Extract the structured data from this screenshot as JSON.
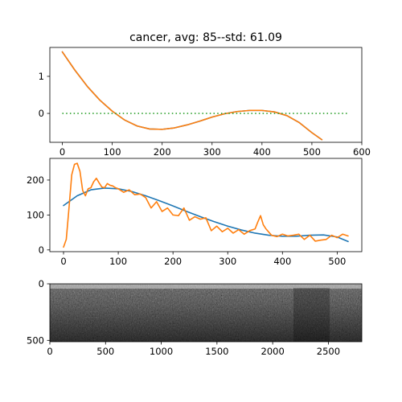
{
  "title": "cancer, avg: 85--std: 61.09",
  "colors": {
    "blue": "#1f77b4",
    "orange": "#ff7f0e",
    "green": "#2ca02c",
    "axis": "#000000"
  },
  "chart_data": [
    {
      "type": "line",
      "title": "cancer, avg: 85--std: 61.09",
      "xlim": [
        -25,
        600
      ],
      "ylim": [
        -0.78,
        1.78
      ],
      "xticks": [
        "0",
        "100",
        "200",
        "300",
        "400",
        "500",
        "600"
      ],
      "yticks": [
        "0",
        "1"
      ],
      "series": [
        {
          "color": "#1f77b4",
          "style": "solid",
          "x": [
            0,
            25,
            50,
            75,
            100,
            125,
            150,
            175,
            200,
            225,
            250,
            275,
            300,
            325,
            350,
            375,
            400,
            425,
            450,
            475,
            500,
            520
          ],
          "y": [
            1.66,
            1.17,
            0.73,
            0.36,
            0.06,
            -0.18,
            -0.34,
            -0.42,
            -0.43,
            -0.39,
            -0.31,
            -0.21,
            -0.1,
            -0.01,
            0.05,
            0.08,
            0.08,
            0.04,
            -0.06,
            -0.25,
            -0.52,
            -0.71
          ]
        },
        {
          "color": "#ff7f0e",
          "style": "solid",
          "x": [
            0,
            25,
            50,
            75,
            100,
            125,
            150,
            175,
            200,
            225,
            250,
            275,
            300,
            325,
            350,
            375,
            400,
            425,
            450,
            475,
            500,
            520
          ],
          "y": [
            1.66,
            1.17,
            0.73,
            0.36,
            0.06,
            -0.18,
            -0.34,
            -0.42,
            -0.43,
            -0.39,
            -0.31,
            -0.21,
            -0.1,
            -0.01,
            0.05,
            0.08,
            0.08,
            0.04,
            -0.06,
            -0.25,
            -0.52,
            -0.71
          ]
        },
        {
          "color": "#2ca02c",
          "style": "dotted",
          "x": [
            0,
            575
          ],
          "y": [
            0,
            0
          ]
        }
      ]
    },
    {
      "type": "line",
      "xlim": [
        -25,
        545
      ],
      "ylim": [
        -5,
        262
      ],
      "xticks": [
        "0",
        "100",
        "200",
        "300",
        "400",
        "500"
      ],
      "yticks": [
        "0",
        "100",
        "200"
      ],
      "series": [
        {
          "color": "#1f77b4",
          "style": "solid",
          "x": [
            0,
            25,
            50,
            75,
            100,
            125,
            150,
            175,
            200,
            225,
            250,
            275,
            300,
            325,
            350,
            375,
            400,
            425,
            450,
            475,
            500,
            520
          ],
          "y": [
            127,
            155,
            172,
            177,
            175,
            167,
            155,
            141,
            126,
            110,
            95,
            81,
            68,
            57,
            48,
            42,
            39,
            39,
            42,
            43,
            37,
            24
          ]
        },
        {
          "color": "#ff7f0e",
          "style": "solid",
          "x": [
            0,
            5,
            10,
            15,
            20,
            25,
            30,
            35,
            40,
            45,
            50,
            55,
            60,
            65,
            70,
            75,
            80,
            85,
            90,
            95,
            100,
            110,
            120,
            130,
            140,
            150,
            160,
            170,
            180,
            190,
            200,
            210,
            220,
            230,
            240,
            250,
            260,
            270,
            280,
            290,
            300,
            310,
            320,
            330,
            340,
            350,
            355,
            360,
            365,
            370,
            380,
            390,
            400,
            410,
            420,
            430,
            440,
            450,
            460,
            470,
            480,
            490,
            500,
            510,
            520
          ],
          "y": [
            8,
            30,
            120,
            215,
            245,
            248,
            225,
            170,
            155,
            175,
            178,
            195,
            205,
            192,
            180,
            178,
            190,
            185,
            183,
            178,
            175,
            165,
            172,
            158,
            160,
            150,
            120,
            138,
            110,
            120,
            100,
            98,
            120,
            85,
            95,
            88,
            92,
            55,
            68,
            52,
            62,
            48,
            58,
            45,
            55,
            60,
            80,
            98,
            72,
            60,
            42,
            38,
            45,
            40,
            42,
            45,
            30,
            42,
            25,
            28,
            30,
            42,
            35,
            45,
            40
          ]
        }
      ]
    },
    {
      "type": "heatmap",
      "xlim": [
        0,
        2800
      ],
      "ylim": [
        512,
        0
      ],
      "xticks": [
        "0",
        "500",
        "1000",
        "1500",
        "2000",
        "2500"
      ],
      "yticks": [
        "0",
        "500"
      ],
      "colormap": "gray"
    }
  ]
}
